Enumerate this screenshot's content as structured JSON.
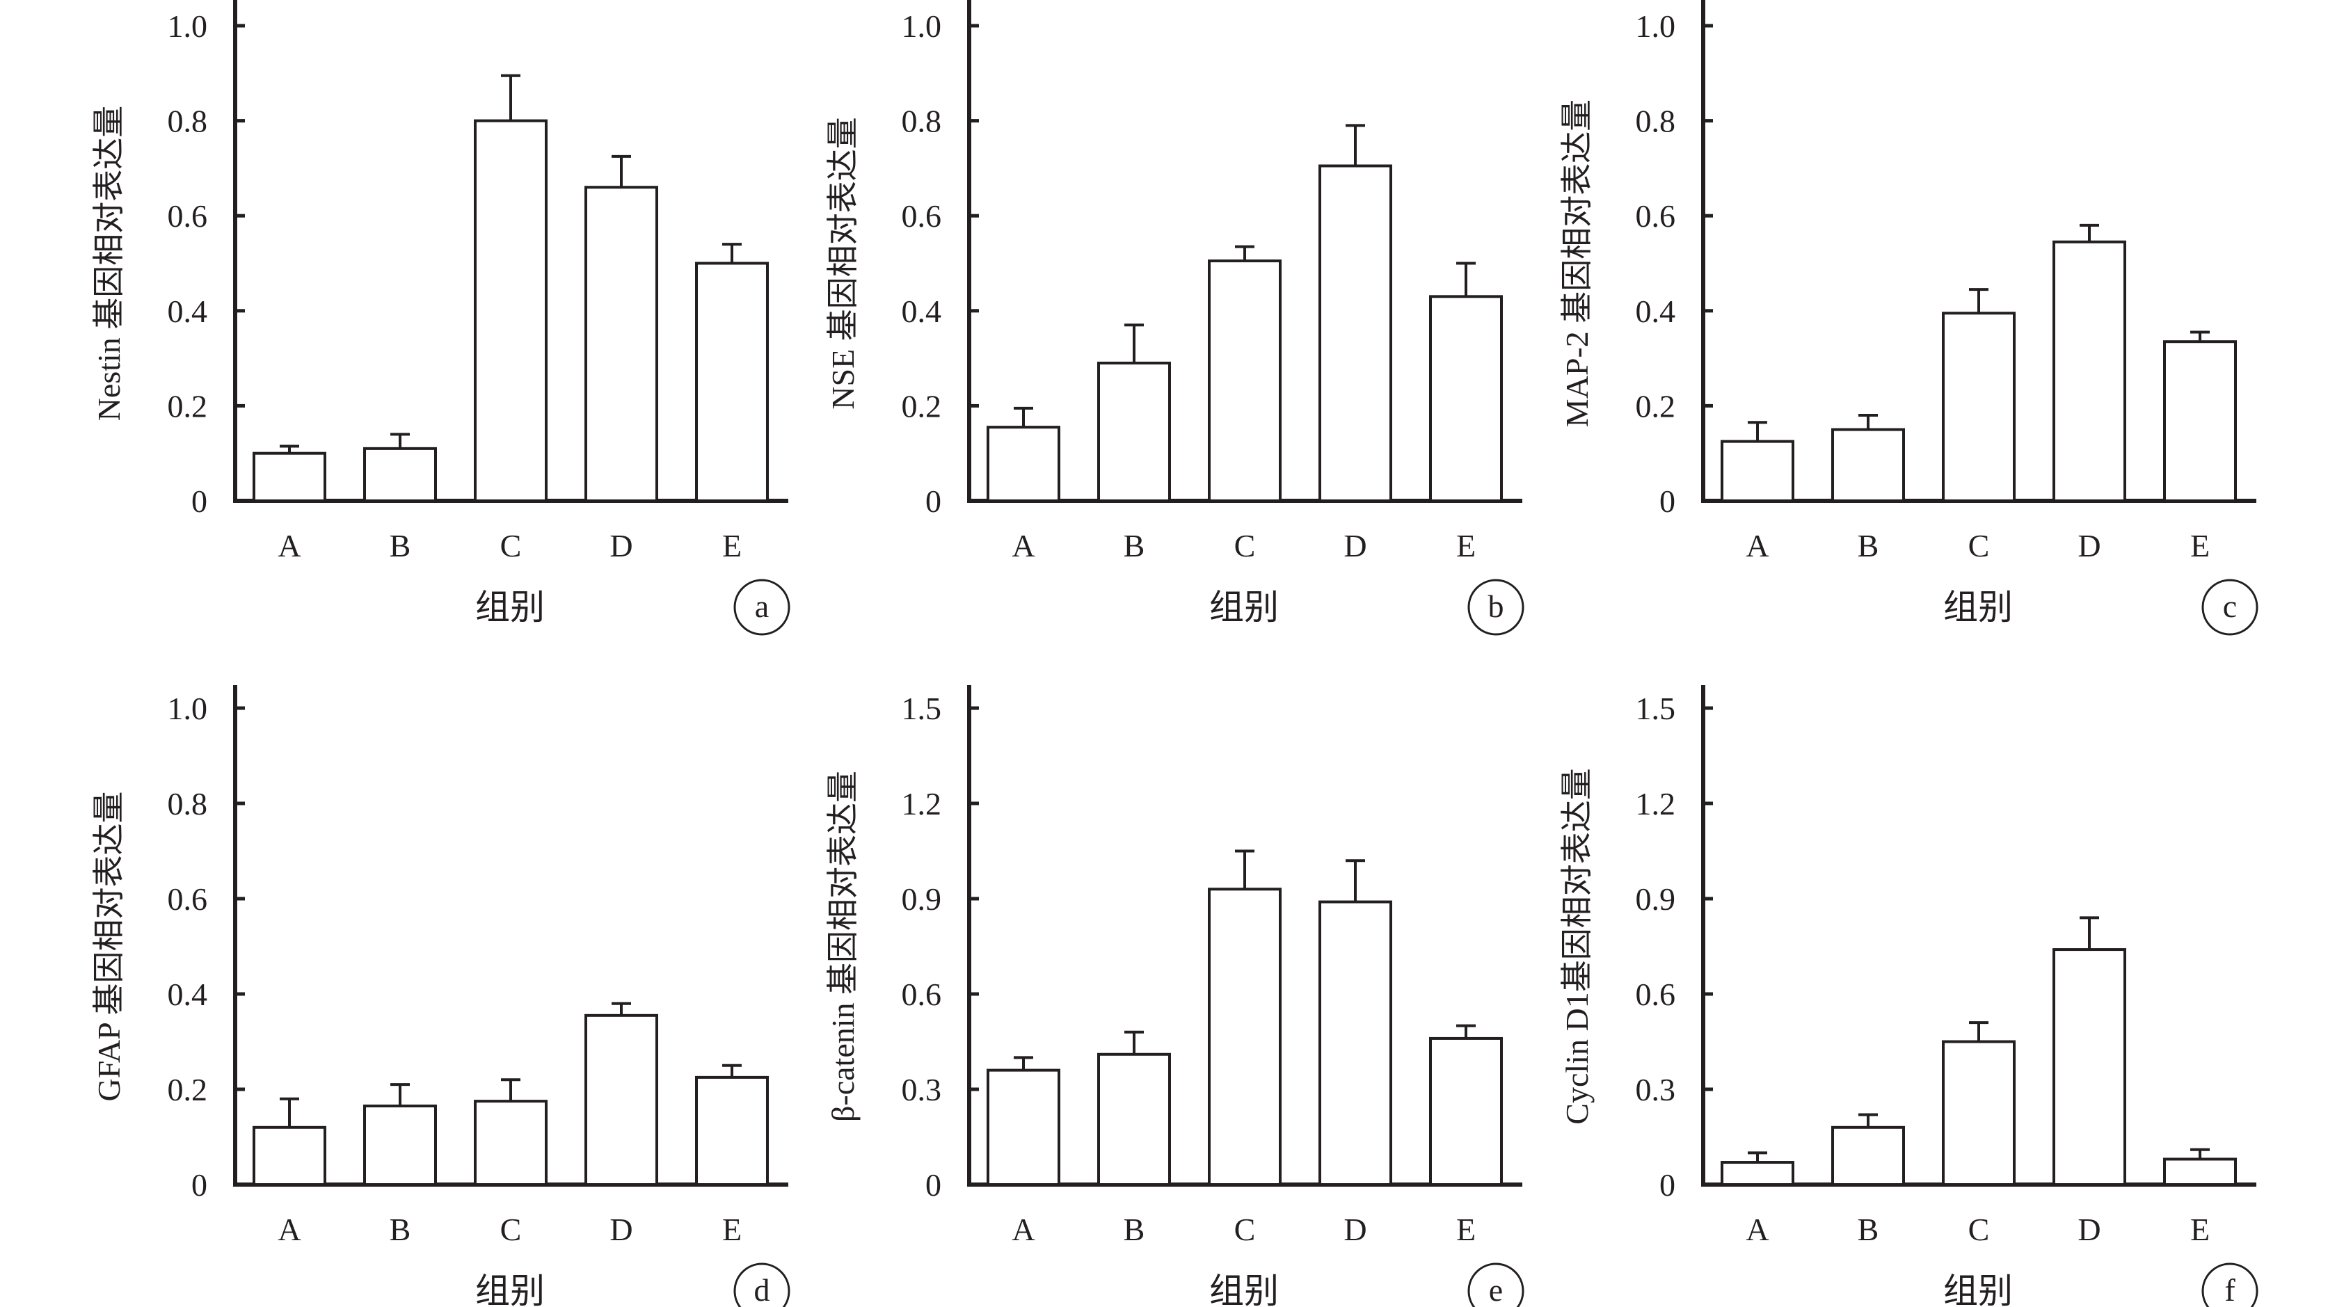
{
  "chart_data": [
    {
      "type": "bar",
      "panel": "a",
      "ylabel": "Nestin 基因相对表达量",
      "xlabel": "组别",
      "categories": [
        "A",
        "B",
        "C",
        "D",
        "E"
      ],
      "values": [
        0.1,
        0.11,
        0.8,
        0.66,
        0.5
      ],
      "errors": [
        0.015,
        0.03,
        0.095,
        0.065,
        0.04
      ],
      "ylim": [
        0,
        1.0
      ],
      "yticks": [
        "0",
        "0.2",
        "0.4",
        "0.6",
        "0.8",
        "1.0"
      ],
      "ytick_values": [
        0,
        0.2,
        0.4,
        0.6,
        0.8,
        1.0
      ]
    },
    {
      "type": "bar",
      "panel": "b",
      "ylabel": "NSE 基因相对表达量",
      "xlabel": "组别",
      "categories": [
        "A",
        "B",
        "C",
        "D",
        "E"
      ],
      "values": [
        0.155,
        0.29,
        0.505,
        0.705,
        0.43
      ],
      "errors": [
        0.04,
        0.08,
        0.03,
        0.085,
        0.07
      ],
      "ylim": [
        0,
        1.0
      ],
      "yticks": [
        "0",
        "0.2",
        "0.4",
        "0.6",
        "0.8",
        "1.0"
      ],
      "ytick_values": [
        0,
        0.2,
        0.4,
        0.6,
        0.8,
        1.0
      ]
    },
    {
      "type": "bar",
      "panel": "c",
      "ylabel": "MAP-2 基因相对表达量",
      "xlabel": "组别",
      "categories": [
        "A",
        "B",
        "C",
        "D",
        "E"
      ],
      "values": [
        0.125,
        0.15,
        0.395,
        0.545,
        0.335
      ],
      "errors": [
        0.04,
        0.03,
        0.05,
        0.035,
        0.02
      ],
      "ylim": [
        0,
        1.0
      ],
      "yticks": [
        "0",
        "0.2",
        "0.4",
        "0.6",
        "0.8",
        "1.0"
      ],
      "ytick_values": [
        0,
        0.2,
        0.4,
        0.6,
        0.8,
        1.0
      ]
    },
    {
      "type": "bar",
      "panel": "d",
      "ylabel": "GFAP 基因相对表达量",
      "xlabel": "组别",
      "categories": [
        "A",
        "B",
        "C",
        "D",
        "E"
      ],
      "values": [
        0.12,
        0.165,
        0.175,
        0.355,
        0.225
      ],
      "errors": [
        0.06,
        0.045,
        0.045,
        0.025,
        0.025
      ],
      "ylim": [
        0,
        1.0
      ],
      "yticks": [
        "0",
        "0.2",
        "0.4",
        "0.6",
        "0.8",
        "1.0"
      ],
      "ytick_values": [
        0,
        0.2,
        0.4,
        0.6,
        0.8,
        1.0
      ]
    },
    {
      "type": "bar",
      "panel": "e",
      "ylabel": "β-catenin 基因相对表达量",
      "xlabel": "组别",
      "categories": [
        "A",
        "B",
        "C",
        "D",
        "E"
      ],
      "values": [
        0.36,
        0.41,
        0.93,
        0.89,
        0.46
      ],
      "errors": [
        0.04,
        0.07,
        0.12,
        0.13,
        0.04
      ],
      "ylim": [
        0,
        1.5
      ],
      "yticks": [
        "0",
        "0.3",
        "0.6",
        "0.9",
        "1.2",
        "1.5"
      ],
      "ytick_values": [
        0,
        0.3,
        0.6,
        0.9,
        1.2,
        1.5
      ]
    },
    {
      "type": "bar",
      "panel": "f",
      "ylabel": "Cyclin  D1基因相对表达量",
      "xlabel": "组别",
      "categories": [
        "A",
        "B",
        "C",
        "D",
        "E"
      ],
      "values": [
        0.07,
        0.18,
        0.45,
        0.74,
        0.08
      ],
      "errors": [
        0.03,
        0.04,
        0.06,
        0.1,
        0.03
      ],
      "ylim": [
        0,
        1.5
      ],
      "yticks": [
        "0",
        "0.3",
        "0.6",
        "0.9",
        "1.2",
        "1.5"
      ],
      "ytick_values": [
        0,
        0.3,
        0.6,
        0.9,
        1.2,
        1.5
      ]
    }
  ]
}
